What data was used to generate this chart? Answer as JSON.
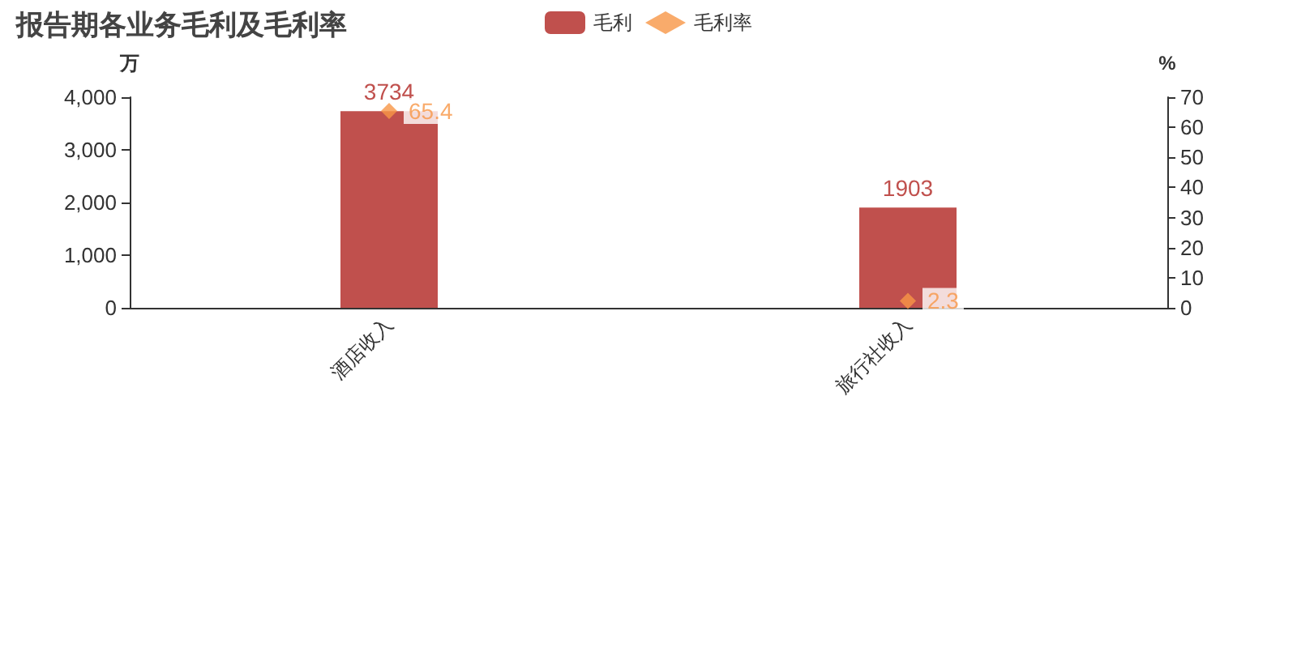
{
  "chart_data": {
    "type": "bar",
    "title": "报告期各业务毛利及毛利率",
    "categories": [
      "酒店收入",
      "旅行社收入"
    ],
    "series": [
      {
        "name": "毛利",
        "color": "#c0504d",
        "values": [
          3734,
          1903
        ]
      },
      {
        "name": "毛利率",
        "type": "scatter",
        "axis": "y2",
        "color": "#f79646",
        "values": [
          65.4,
          2.3
        ]
      }
    ],
    "ylabel": "万",
    "y2label": "%",
    "ylim": [
      0,
      4000
    ],
    "yticks": [
      0,
      {
        "value": 1000,
        "label": "1,000"
      },
      {
        "value": 2000,
        "label": "2,000"
      },
      {
        "value": 3000,
        "label": "3,000"
      },
      {
        "value": 4000,
        "label": "4,000"
      }
    ],
    "y2lim": [
      0,
      70
    ],
    "y2ticks": [
      0,
      10,
      20,
      30,
      40,
      50,
      60,
      70
    ],
    "data_labels": true,
    "legend": "top",
    "grid": false,
    "marker": "diamond"
  }
}
